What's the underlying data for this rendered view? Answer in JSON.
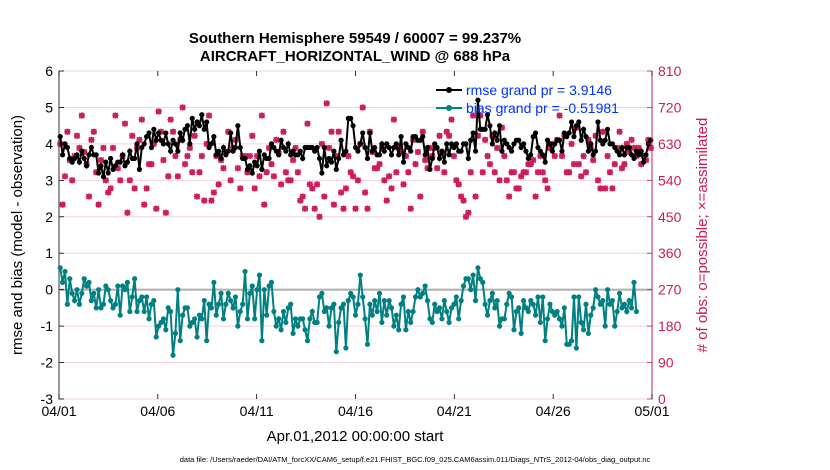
{
  "chart_data": {
    "type": "line",
    "title_line1": "Southern Hemisphere 59549 / 60007 = 99.237%",
    "title_line2": "AIRCRAFT_HORIZONTAL_WIND @ 688 hPa",
    "xlabel": "Apr.01,2012 00:00:00 start",
    "ylabel_left": "rmse and bias (model - observation)",
    "ylabel_right": "# of obs: o=possible; ×=assimilated",
    "footer": "data file: /Users/raeder/DAI/ATM_forcXX/CAM6_setup/f.e21.FHIST_BGC.f09_025.CAM6assim.011/Diags_NTrS_2012-04/obs_diag_output.nc",
    "x_ticks": [
      {
        "day": 0,
        "label": "04/01"
      },
      {
        "day": 5,
        "label": "04/06"
      },
      {
        "day": 10,
        "label": "04/11"
      },
      {
        "day": 15,
        "label": "04/16"
      },
      {
        "day": 20,
        "label": "04/21"
      },
      {
        "day": 25,
        "label": "04/26"
      },
      {
        "day": 30,
        "label": "05/01"
      }
    ],
    "xlim": [
      0,
      30
    ],
    "ylim_left": [
      -3,
      6
    ],
    "y_ticks_left": [
      "-3",
      "-2",
      "-1",
      "0",
      "1",
      "2",
      "3",
      "4",
      "5",
      "6"
    ],
    "ylim_right": [
      0,
      810
    ],
    "y_ticks_right": [
      "0",
      "90",
      "180",
      "270",
      "360",
      "450",
      "540",
      "630",
      "720",
      "810"
    ],
    "legend": [
      {
        "label": "rmse grand pr = 3.9146",
        "color": "#000000"
      },
      {
        "label": "bias grand pr = -0.51981",
        "color": "#008080"
      }
    ],
    "colors": {
      "rmse": "#000000",
      "bias": "#008080",
      "obs": "#cc1a5c",
      "zero_line": "#b3b3b3",
      "legend_text": "#0033ff",
      "right_axis": "#cc1a5c"
    },
    "rmse": [
      4.2,
      3.7,
      4.0,
      3.9,
      3.6,
      3.5,
      3.6,
      3.7,
      3.5,
      3.8,
      3.6,
      3.4,
      3.7,
      3.9,
      3.7,
      3.7,
      3.2,
      3.4,
      3.1,
      3.5,
      3.2,
      3.6,
      3.3,
      3.4,
      3.5,
      3.5,
      3.7,
      3.4,
      3.5,
      3.8,
      3.6,
      3.6,
      4.0,
      3.3,
      3.9,
      4.0,
      4.2,
      4.3,
      3.9,
      4.4,
      4.1,
      4.3,
      4.1,
      4.0,
      4.3,
      4.0,
      3.8,
      4.1,
      4.0,
      3.8,
      4.3,
      4.1,
      4.4,
      4.5,
      4.0,
      4.7,
      4.4,
      4.6,
      4.5,
      4.8,
      4.4,
      4.6,
      3.9,
      4.0,
      4.2,
      3.7,
      3.8,
      3.6,
      3.9,
      3.7,
      3.8,
      4.3,
      3.8,
      3.9,
      4.5,
      3.9,
      3.6,
      3.6,
      3.3,
      3.4,
      3.2,
      3.5,
      3.4,
      3.8,
      3.3,
      3.7,
      3.6,
      3.6,
      4.0,
      3.9,
      3.8,
      3.7,
      4.1,
      3.9,
      3.8,
      4.0,
      3.7,
      3.8,
      3.7,
      3.7,
      3.8,
      3.6,
      3.9,
      3.9,
      3.9,
      3.9,
      3.8,
      3.9,
      3.6,
      3.2,
      3.9,
      3.4,
      3.6,
      3.5,
      3.8,
      3.3,
      3.6,
      4.1,
      3.7,
      3.8,
      4.7,
      4.7,
      4.5,
      3.9,
      3.8,
      4.0,
      4.3,
      3.9,
      3.6,
      4.3,
      3.8,
      3.9,
      3.7,
      3.7,
      4.0,
      3.8,
      4.0,
      3.9,
      3.7,
      3.9,
      4.0,
      3.7,
      4.2,
      3.5,
      4.0,
      3.9,
      3.8,
      4.2,
      4.2,
      4.1,
      4.1,
      4.2,
      3.7,
      3.9,
      3.3,
      3.6,
      4.0,
      3.9,
      3.6,
      3.8,
      3.5,
      4.0,
      3.7,
      4.0,
      3.9,
      4.0,
      3.8,
      3.8,
      4.0,
      4.0,
      3.6,
      4.1,
      4.3,
      3.8,
      5.2,
      4.4,
      4.4,
      4.4,
      4.8,
      4.5,
      4.0,
      4.3,
      4.1,
      4.5,
      3.8,
      4.1,
      4.0,
      3.9,
      3.8,
      4.0,
      4.1,
      4.1,
      3.9,
      4.0,
      3.8,
      3.6,
      3.7,
      4.2,
      4.3,
      3.9,
      3.8,
      3.7,
      3.5,
      4.1,
      4.0,
      3.8,
      4.0,
      4.1,
      4.1,
      3.8,
      4.3,
      4.2,
      4.3,
      4.6,
      4.2,
      4.5,
      4.6,
      4.1,
      4.4,
      4.2,
      3.8,
      4.0,
      3.7,
      3.8,
      4.6,
      4.1,
      4.0,
      4.1,
      4.4,
      4.0,
      4.0,
      3.9,
      3.8,
      3.7,
      3.9,
      3.7,
      3.9,
      3.9,
      3.7,
      3.6,
      3.8,
      3.7,
      3.8,
      3.5,
      3.7,
      4.0,
      4.1
    ],
    "bias": [
      0.6,
      0.2,
      0.5,
      -0.4,
      0.3,
      -0.1,
      -0.3,
      0.0,
      -0.4,
      -0.1,
      0.3,
      0.1,
      0.2,
      -0.3,
      -0.1,
      -0.5,
      0.0,
      -0.5,
      -0.4,
      0.1,
      0.0,
      -0.3,
      -0.5,
      -0.4,
      0.1,
      -0.7,
      0.1,
      0.0,
      0.2,
      -0.6,
      -0.2,
      0.3,
      -0.6,
      -0.3,
      -0.2,
      -0.6,
      -0.2,
      -0.8,
      -0.4,
      -0.3,
      -1.3,
      -1.0,
      -0.9,
      -0.8,
      -1.1,
      -0.5,
      -0.6,
      -1.8,
      -1.2,
      0.0,
      -1.4,
      -0.7,
      -0.5,
      -0.5,
      -1.0,
      -0.9,
      -0.8,
      -1.3,
      -0.7,
      -0.8,
      -0.3,
      -1.4,
      -0.4,
      -0.5,
      0.2,
      -0.7,
      -0.4,
      -0.1,
      -0.8,
      -0.4,
      -0.1,
      -0.3,
      -0.5,
      -0.2,
      -1.0,
      -0.6,
      -0.4,
      0.5,
      -0.8,
      -0.1,
      0.1,
      -0.8,
      0.0,
      0.4,
      -1.4,
      0.0,
      -0.7,
      0.1,
      0.2,
      -0.6,
      -1.0,
      -0.8,
      -1.1,
      -0.6,
      -0.9,
      -0.5,
      -0.4,
      -1.2,
      -0.8,
      -1.0,
      -0.8,
      -0.8,
      -1.1,
      -1.4,
      -0.8,
      -0.6,
      -0.9,
      -0.9,
      -0.2,
      -0.1,
      -0.6,
      -0.5,
      -1.0,
      -0.5,
      -0.4,
      -1.7,
      -0.9,
      -0.5,
      -0.4,
      -1.6,
      -0.3,
      -0.1,
      -0.2,
      -0.7,
      -0.4,
      0.4,
      -0.2,
      -0.8,
      -1.5,
      -0.4,
      -0.7,
      -0.3,
      -0.6,
      -0.1,
      -0.9,
      -0.3,
      -0.7,
      -0.3,
      -0.5,
      -1.0,
      -0.7,
      -1.1,
      -0.4,
      -0.2,
      -1.1,
      -0.6,
      -0.9,
      -0.6,
      -0.2,
      0.0,
      -0.2,
      -0.1,
      0.1,
      -0.3,
      -0.8,
      -0.9,
      -0.4,
      -0.6,
      -0.5,
      -0.8,
      -0.3,
      -0.6,
      -0.9,
      -0.5,
      -0.4,
      -0.2,
      -0.8,
      -0.3,
      0.1,
      0.3,
      0.3,
      0.0,
      0.4,
      -0.3,
      0.6,
      0.3,
      0.2,
      -0.4,
      -0.7,
      -0.3,
      -0.1,
      -0.5,
      -0.3,
      -1.0,
      -0.8,
      -0.8,
      -0.4,
      -0.1,
      -0.2,
      -1.1,
      -0.6,
      -0.5,
      -1.2,
      -0.3,
      -0.5,
      -0.6,
      -0.3,
      -0.4,
      -0.7,
      -0.2,
      -0.9,
      -0.2,
      -1.4,
      -0.8,
      -0.4,
      -0.6,
      -0.7,
      -0.6,
      -0.8,
      -1.0,
      -0.5,
      -1.5,
      -1.5,
      -1.4,
      -0.2,
      -1.6,
      -0.2,
      -0.9,
      -1.1,
      -0.4,
      -1.2,
      -0.7,
      -0.5,
      0.0,
      -0.2,
      -0.4,
      -0.3,
      -1.0,
      0.0,
      -0.4,
      -0.3,
      -1.0,
      -0.6,
      -0.1,
      -0.5,
      -0.4,
      -0.6,
      -0.3,
      -0.5,
      0.2,
      -0.6
    ],
    "obs_possible": [
      630,
      480,
      550,
      660,
      590,
      540,
      600,
      650,
      620,
      700,
      610,
      580,
      500,
      640,
      660,
      560,
      480,
      590,
      620,
      540,
      510,
      520,
      620,
      700,
      570,
      540,
      600,
      680,
      460,
      540,
      650,
      520,
      620,
      640,
      690,
      480,
      520,
      580,
      580,
      630,
      470,
      710,
      660,
      590,
      460,
      550,
      690,
      660,
      600,
      550,
      640,
      720,
      580,
      600,
      620,
      560,
      650,
      500,
      560,
      600,
      490,
      630,
      700,
      490,
      510,
      600,
      530,
      590,
      570,
      610,
      660,
      540,
      620,
      640,
      570,
      520,
      600,
      600,
      560,
      600,
      650,
      520,
      600,
      550,
      700,
      480,
      560,
      620,
      580,
      550,
      640,
      610,
      530,
      660,
      560,
      540,
      540,
      590,
      620,
      560,
      490,
      500,
      470,
      680,
      530,
      520,
      470,
      530,
      450,
      630,
      500,
      730,
      620,
      660,
      480,
      600,
      660,
      510,
      470,
      520,
      600,
      560,
      550,
      470,
      540,
      630,
      720,
      510,
      470,
      660,
      610,
      570,
      570,
      580,
      620,
      540,
      490,
      550,
      520,
      690,
      560,
      620,
      610,
      530,
      600,
      560,
      470,
      640,
      580,
      610,
      500,
      660,
      590,
      570,
      620,
      600,
      620,
      570,
      650,
      610,
      560,
      660,
      650,
      690,
      600,
      540,
      530,
      500,
      490,
      450,
      460,
      560,
      700,
      500,
      650,
      700,
      560,
      640,
      600,
      580,
      650,
      560,
      620,
      540,
      670,
      600,
      540,
      500,
      560,
      560,
      520,
      520,
      550,
      560,
      560,
      580,
      580,
      590,
      500,
      560,
      600,
      560,
      540,
      520,
      620,
      630,
      600,
      640,
      700,
      600,
      650,
      560,
      560,
      630,
      580,
      670,
      580,
      550,
      600,
      560,
      640,
      620,
      590,
      650,
      540,
      520,
      660,
      520,
      600,
      560,
      520,
      580,
      620,
      660,
      570,
      580,
      630,
      610,
      640,
      620,
      600,
      620,
      580,
      600,
      590,
      640,
      620
    ],
    "obs_assimilated": [
      630,
      480,
      550,
      660,
      590,
      540,
      600,
      650,
      620,
      700,
      610,
      580,
      500,
      640,
      660,
      560,
      480,
      590,
      620,
      540,
      510,
      520,
      620,
      700,
      570,
      540,
      600,
      680,
      460,
      540,
      650,
      520,
      620,
      640,
      690,
      480,
      520,
      580,
      580,
      630,
      470,
      710,
      660,
      590,
      460,
      550,
      690,
      660,
      600,
      550,
      640,
      720,
      580,
      600,
      620,
      560,
      650,
      500,
      560,
      600,
      490,
      630,
      700,
      490,
      510,
      600,
      530,
      590,
      570,
      610,
      660,
      540,
      620,
      640,
      570,
      520,
      600,
      600,
      560,
      600,
      650,
      520,
      600,
      550,
      700,
      480,
      560,
      620,
      580,
      550,
      640,
      610,
      530,
      660,
      560,
      540,
      540,
      590,
      620,
      560,
      490,
      500,
      470,
      680,
      530,
      520,
      470,
      530,
      450,
      630,
      500,
      730,
      620,
      660,
      480,
      600,
      660,
      510,
      470,
      520,
      600,
      560,
      550,
      470,
      540,
      630,
      720,
      510,
      470,
      660,
      610,
      570,
      570,
      580,
      620,
      540,
      490,
      550,
      520,
      690,
      560,
      620,
      610,
      530,
      600,
      560,
      470,
      640,
      580,
      610,
      500,
      660,
      590,
      570,
      620,
      600,
      620,
      570,
      650,
      610,
      560,
      660,
      650,
      690,
      600,
      540,
      530,
      500,
      490,
      450,
      460,
      560,
      700,
      500,
      650,
      700,
      560,
      640,
      600,
      580,
      650,
      560,
      620,
      540,
      670,
      600,
      540,
      500,
      560,
      560,
      520,
      520,
      550,
      560,
      560,
      580,
      580,
      590,
      500,
      560,
      600,
      560,
      540,
      520,
      620,
      630,
      600,
      640,
      700,
      600,
      650,
      560,
      560,
      630,
      580,
      670,
      580,
      550,
      600,
      560,
      640,
      620,
      590,
      650,
      540,
      520,
      660,
      520,
      600,
      560,
      520,
      580,
      620,
      660,
      570,
      580,
      630,
      610,
      640,
      620,
      600,
      620,
      580,
      600,
      590,
      640,
      620
    ]
  }
}
